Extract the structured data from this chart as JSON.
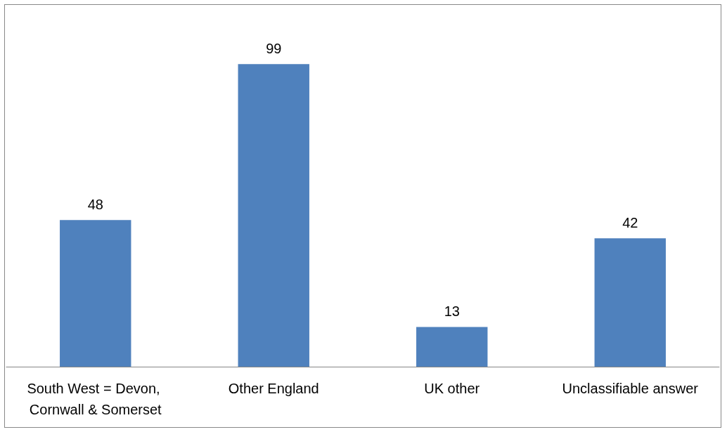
{
  "chart_data": {
    "type": "bar",
    "categories": [
      "South West = Devon, Cornwall & Somerset",
      "Other England",
      "UK other",
      "Unclassifiable answer"
    ],
    "values": [
      48,
      99,
      13,
      42
    ],
    "color": "#4f81bd",
    "data_labels": true
  }
}
